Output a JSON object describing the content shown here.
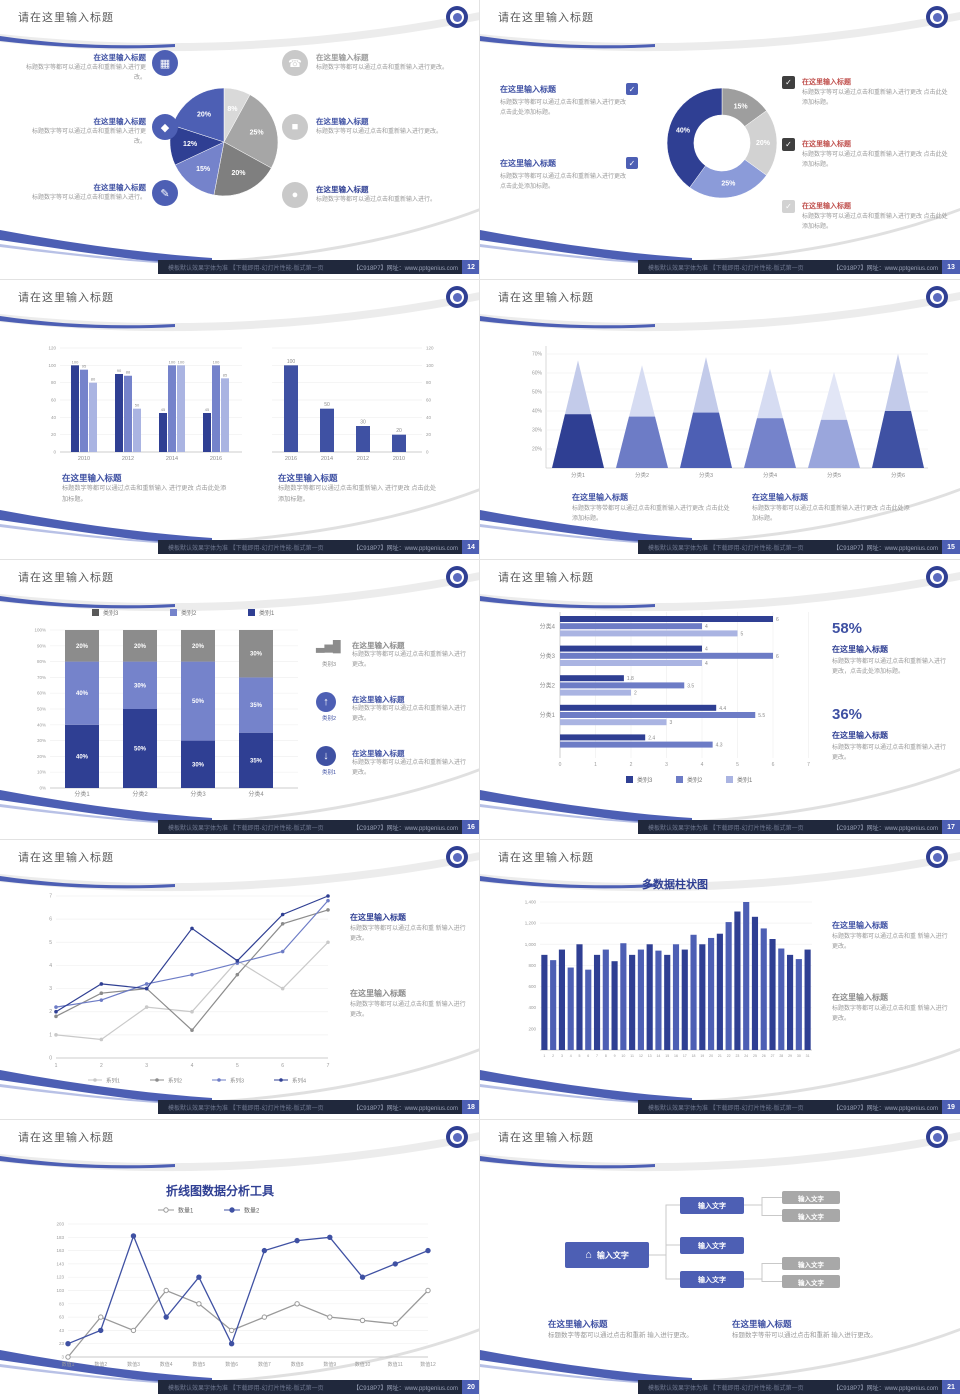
{
  "common": {
    "slide_title": "请在这里输入标题",
    "footer_left": "模板默认效果字体为准 【下载即用-幻灯片性能-版式第一页",
    "footer_right": "【C918P7】网址：www.pptgenius.com",
    "colors": {
      "accent": "#4d5fb4",
      "dark_blue": "#2f3f93",
      "mid_blue": "#7583cb",
      "light_blue": "#aab4e2",
      "gray": "#8c8c8c",
      "footer_bar": "#20283c",
      "red_title": "#c0504d"
    }
  },
  "slides": [
    {
      "page": "12",
      "type": "pie",
      "chart_data": {
        "type": "pie",
        "slices": [
          {
            "label": "8%",
            "value": 8,
            "color": "#d9d9d9"
          },
          {
            "label": "25%",
            "value": 25,
            "color": "#a6a6a6"
          },
          {
            "label": "20%",
            "value": 20,
            "color": "#7f7f7f"
          },
          {
            "label": "15%",
            "value": 15,
            "color": "#7583cb"
          },
          {
            "label": "12%",
            "value": 12,
            "color": "#2f3f93"
          },
          {
            "label": "20%",
            "value": 20,
            "color": "#4d5fb4"
          }
        ]
      },
      "left": [
        {
          "icon": "monitor-icon",
          "glyph": "▦",
          "title": "在这里输入标题",
          "title_color": "#3f51a3",
          "body": "标题数字等都可以通过点击和重新输入进行更改。"
        },
        {
          "icon": "car-icon",
          "glyph": "◆",
          "title": "在这里输入标题",
          "title_color": "#3f51a3",
          "body": "标题数字等可以通过点击和重新输入进行更改。"
        },
        {
          "icon": "book-icon",
          "glyph": "✎",
          "title": "在这里输入标题",
          "title_color": "#3f51a3",
          "body": "标题数字等可以通过点击和重新输入进行。"
        }
      ],
      "right": [
        {
          "icon": "phone-icon",
          "glyph": "☎",
          "title": "在这里输入标题",
          "title_color": "#9a9a9a",
          "body": "标题数字等都可以通过点击和重新输入进行更改。"
        },
        {
          "icon": "lock-icon",
          "glyph": "■",
          "title": "在这里输入标题",
          "title_color": "#3f51a3",
          "body": "标题数字等可以通过点击和重新输入进行更改。"
        },
        {
          "icon": "bike-icon",
          "glyph": "●",
          "title": "在这里输入标题",
          "title_color": "#2f3f93",
          "body": "标题数字等都可以通过点击和重新输入进行。"
        }
      ]
    },
    {
      "page": "13",
      "type": "donut",
      "chart_data": {
        "type": "pie",
        "inner_radius": true,
        "slices": [
          {
            "label": "15%",
            "value": 15,
            "color": "#9e9e9e"
          },
          {
            "label": "20%",
            "value": 20,
            "color": "#d2d2d2"
          },
          {
            "label": "25%",
            "value": 25,
            "color": "#8b9bd9"
          },
          {
            "label": "40%",
            "value": 40,
            "color": "#2f3f93"
          }
        ]
      },
      "left": [
        {
          "title": "在这里输入标题",
          "title_color": "#3f51a3",
          "body": "标题数字等都可以通过点击和重新输入进行更改 点击此处添加标题。"
        },
        {
          "title": "在这里输入标题",
          "title_color": "#3f51a3",
          "body": "标题数字等都可以通过点击和重新输入进行更改 点击此处添加标题。"
        }
      ],
      "right": [
        {
          "box_color": "#3f3f3f",
          "title": "在这里输入标题",
          "title_color": "#c0504d",
          "body": "标题数字等可以通过点击和重新输入进行更改 点击此处添加标题。"
        },
        {
          "box_color": "#3f3f3f",
          "title": "在这里输入标题",
          "title_color": "#c0504d",
          "body": "标题数字等可以通过点击和重新输入进行更改 点击此处添加标题。"
        },
        {
          "box_color": "#d2d2d2",
          "title": "在这里输入标题",
          "title_color": "#c0504d",
          "body": "标题数字等可以通过点击和重新输入进行更改 点击此处添加标题。"
        }
      ]
    },
    {
      "page": "14",
      "type": "twobars",
      "chart_data": [
        {
          "type": "bar",
          "categories": [
            "2010",
            "2012",
            "2014",
            "2016"
          ],
          "series": [
            {
              "name": "series1",
              "color": "#2f3f93",
              "values": [
                100,
                90,
                45,
                45
              ]
            },
            {
              "name": "series2",
              "color": "#7583cb",
              "values": [
                95,
                88,
                100,
                100
              ]
            },
            {
              "name": "series3",
              "color": "#aab4e2",
              "values": [
                80,
                50,
                100,
                85
              ]
            }
          ],
          "ylim": [
            0,
            120
          ]
        },
        {
          "type": "bar",
          "categories": [
            "2016",
            "2014",
            "2012",
            "2010"
          ],
          "values": [
            100,
            50,
            30,
            20
          ],
          "color": "#3f51a3",
          "ylim": [
            0,
            120
          ]
        }
      ],
      "blocks": [
        {
          "title": "在这里输入标题",
          "title_color": "#3f51a3",
          "body": "标题数字等都可以通过点击和重新输入 进行更改 点击此处添加标题。"
        },
        {
          "title": "在这里输入标题",
          "title_color": "#3f51a3",
          "body": "标题数字等都可以通过点击和重新输入 进行更改 点击此处添加标题。"
        }
      ]
    },
    {
      "page": "15",
      "type": "pyramid",
      "chart_data": {
        "type": "area",
        "subtype": "pyramid",
        "categories": [
          "分类1",
          "分类2",
          "分类3",
          "分类4",
          "分类5",
          "分类6"
        ],
        "values": [
          66,
          63,
          68,
          61,
          59,
          70
        ],
        "yticks": [
          "20%",
          "30%",
          "40%",
          "50%",
          "60%",
          "70%"
        ],
        "colors": [
          [
            "#2f3f93",
            "#c3cbea"
          ],
          [
            "#6d7cc6",
            "#d6dcf2"
          ],
          [
            "#4d5fb4",
            "#c3cbea"
          ],
          [
            "#7583cb",
            "#d6dcf2"
          ],
          [
            "#9aa6dc",
            "#e2e6f6"
          ],
          [
            "#3f51a3",
            "#c3cbea"
          ]
        ]
      },
      "blocks": [
        {
          "title": "在这里输入标题",
          "title_color": "#3f51a3",
          "body": "标题数字等带都可以通过点击和重新输入进行更改 点击此处添加标题。"
        },
        {
          "title": "在这里输入标题",
          "title_color": "#3f51a3",
          "body": "标题数字等都可以通过点击和重新输入进行更改 点击此处添加标题。"
        }
      ]
    },
    {
      "page": "16",
      "type": "stacked",
      "chart_data": {
        "type": "bar",
        "subtype": "stacked-100",
        "categories": [
          "分类1",
          "分类2",
          "分类3",
          "分类4"
        ],
        "series": [
          {
            "name": "类别1",
            "color": "#2f3f93",
            "values": [
              40,
              50,
              30,
              35
            ]
          },
          {
            "name": "类别2",
            "color": "#7583cb",
            "values": [
              40,
              30,
              50,
              35
            ]
          },
          {
            "name": "类别3",
            "color": "#8c8c8c",
            "values": [
              20,
              20,
              20,
              30
            ]
          }
        ],
        "legend": [
          "类别3",
          "类别2",
          "类别1"
        ],
        "legend_colors": [
          "#595959",
          "#7583cb",
          "#2f3f93"
        ],
        "ylim": [
          0,
          100
        ]
      },
      "rows": [
        {
          "icon": "bar-chart-icon",
          "glyph": "▃▅█",
          "label": "类别3",
          "label_color": "#8c8c8c",
          "title": "在这里输入标题",
          "title_color": "#8c8c8c",
          "body": "标题数字等都可以通过点击和重新输入进行更改。"
        },
        {
          "icon": "arrow-up-icon",
          "glyph": "↑",
          "label": "类别2",
          "label_color": "#3f51a3",
          "title": "在这里输入标题",
          "title_color": "#3f51a3",
          "body": "标题数字等都可以通过点击和重新输入进行更改。"
        },
        {
          "icon": "arrow-down-icon",
          "glyph": "↓",
          "label": "类别1",
          "label_color": "#3f51a3",
          "title": "在这里输入标题",
          "title_color": "#3f51a3",
          "body": "标题数字等都可以通过点击和重新输入进行更改。"
        }
      ]
    },
    {
      "page": "17",
      "type": "hbar",
      "chart_data": {
        "type": "bar",
        "subtype": "horizontal",
        "xlim": [
          0,
          7
        ],
        "rows": [
          {
            "label": "分类4",
            "values": [
              6,
              4,
              5
            ]
          },
          {
            "label": "分类3",
            "values": [
              4,
              6,
              4
            ]
          },
          {
            "label": "分类2",
            "values": [
              1.8,
              3.5,
              2
            ]
          },
          {
            "label": "分类1",
            "values": [
              4.4,
              5.5,
              3
            ]
          },
          {
            "label": "",
            "values": [
              2.4,
              4.3
            ]
          }
        ],
        "bar_colors": [
          "#2f3f93",
          "#6d7cc6",
          "#aab4e2"
        ],
        "legend": [
          "类别3",
          "类别2",
          "类别1"
        ],
        "legend_colors": [
          "#2f3f93",
          "#6d7cc6",
          "#aab4e2"
        ]
      },
      "stats": [
        {
          "pct": "58%",
          "title": "在这里输入标题",
          "title_color": "#2f3f93",
          "body": "标题数字等都可以通过点击和重新输入进行更改，点击此处添加标题。"
        },
        {
          "pct": "36%",
          "title": "在这里输入标题",
          "title_color": "#2f3f93",
          "body": "标题数字等都可以通过点击和重新输入进行更改。"
        }
      ]
    },
    {
      "page": "18",
      "type": "multiline",
      "chart_data": {
        "type": "line",
        "x": [
          1,
          2,
          3,
          4,
          5,
          6,
          7
        ],
        "ylim": [
          0,
          7
        ],
        "series": [
          {
            "name": "系列1",
            "color": "#c9c9c9",
            "values": [
              1,
              0.8,
              2.2,
              2,
              4.2,
              3,
              5
            ]
          },
          {
            "name": "系列2",
            "color": "#8c8c8c",
            "values": [
              1.8,
              2.8,
              3,
              1.2,
              3.6,
              5.8,
              6.4
            ]
          },
          {
            "name": "系列3",
            "color": "#6d7cc6",
            "values": [
              2.2,
              2.5,
              3.2,
              3.6,
              4.1,
              4.6,
              6.8
            ]
          },
          {
            "name": "系列4",
            "color": "#2f3f93",
            "values": [
              2,
              3.2,
              3,
              5.6,
              4.2,
              6.2,
              7
            ]
          }
        ],
        "legend_position": "bottom"
      },
      "blocks": [
        {
          "title": "在这里输入标题",
          "title_color": "#2f3f93",
          "body": "标题数字等都可以通过点击和重 新输入进行更改。"
        },
        {
          "title": "在这里输入标题",
          "title_color": "#8c8c8c",
          "body": "标题数字等都可以通过点击和重 新输入进行更改。"
        }
      ]
    },
    {
      "page": "19",
      "type": "columns",
      "chart_data": {
        "type": "bar",
        "title": "多数据柱状图",
        "ylim": [
          0,
          1400
        ],
        "yticks": [
          "200",
          "400",
          "600",
          "800",
          "1,000",
          "1,200",
          "1,400"
        ],
        "values": [
          900,
          850,
          950,
          780,
          1000,
          760,
          900,
          950,
          840,
          1010,
          900,
          950,
          1000,
          940,
          900,
          1000,
          950,
          1090,
          1000,
          1060,
          1100,
          1210,
          1310,
          1400,
          1260,
          1150,
          1050,
          960,
          900,
          860,
          950
        ],
        "bar_colors": [
          "#2f3f93",
          "#4d5fb4"
        ]
      },
      "blocks": [
        {
          "title": "在这里输入标题",
          "title_color": "#3f51a3",
          "body": "标题数字等都可以通过点击和重 新输入进行更改。"
        },
        {
          "title": "在这里输入标题",
          "title_color": "#8c8c8c",
          "body": "标题数字等都可以通过点击和重 新输入进行更改。"
        }
      ]
    },
    {
      "page": "20",
      "type": "linechart",
      "chart_data": {
        "type": "line",
        "title": "折线图数据分析工具",
        "categories": [
          "数值1",
          "数值2",
          "数值3",
          "数值4",
          "数值5",
          "数值6",
          "数值7",
          "数值8",
          "数值9",
          "数值10",
          "数值11",
          "数值12"
        ],
        "yticks": [
          "3",
          "23",
          "43",
          "63",
          "83",
          "103",
          "123",
          "143",
          "163",
          "183",
          "203"
        ],
        "ylim": [
          3,
          203
        ],
        "series": [
          {
            "name": "数量1",
            "color": "#9a9a9a",
            "marker": "open",
            "values": [
              3,
              63,
              43,
              103,
              83,
              43,
              63,
              83,
              63,
              58,
              53,
              103
            ]
          },
          {
            "name": "数量2",
            "color": "#3f51a3",
            "marker": "filled",
            "values": [
              23,
              43,
              185,
              63,
              123,
              23,
              163,
              178,
              183,
              123,
              143,
              163
            ]
          }
        ]
      },
      "blocks": []
    },
    {
      "page": "21",
      "type": "flow",
      "flow": {
        "main_label": "输入文字",
        "mid_labels": [
          "输入文字",
          "输入文字",
          "输入文字"
        ],
        "end_labels": [
          "输入文字",
          "输入文字",
          "输入文字",
          "输入文字"
        ]
      },
      "blocks": [
        {
          "title": "在这里输入标题",
          "title_color": "#3f51a3",
          "body": "标题数字等都可以通过点击和重新 输入进行更改。"
        },
        {
          "title": "在这里输入标题",
          "title_color": "#3f51a3",
          "body": "标题数字等带可以通过点击和重新 输入进行更改。"
        }
      ]
    }
  ]
}
